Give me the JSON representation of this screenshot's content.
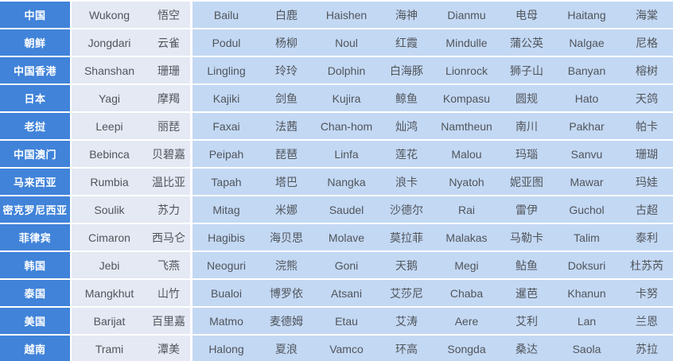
{
  "chart_data": {
    "type": "table",
    "description_visible_content_only": "List of Pacific typhoon names: region (Chinese) followed by five typhoon name pairs (English name, Chinese name)",
    "rows": [
      [
        "中国",
        "Wukong",
        "悟空",
        "Bailu",
        "白鹿",
        "Haishen",
        "海神",
        "Dianmu",
        "电母",
        "Haitang",
        "海棠"
      ],
      [
        "朝鲜",
        "Jongdari",
        "云雀",
        "Podul",
        "杨柳",
        "Noul",
        "红霞",
        "Mindulle",
        "蒲公英",
        "Nalgae",
        "尼格"
      ],
      [
        "中国香港",
        "Shanshan",
        "珊珊",
        "Lingling",
        "玲玲",
        "Dolphin",
        "白海豚",
        "Lionrock",
        "狮子山",
        "Banyan",
        "榕树"
      ],
      [
        "日本",
        "Yagi",
        "摩羯",
        "Kajiki",
        "剑鱼",
        "Kujira",
        "鲸鱼",
        "Kompasu",
        "圆规",
        "Hato",
        "天鸽"
      ],
      [
        "老挝",
        "Leepi",
        "丽琵",
        "Faxai",
        "法茜",
        "Chan-hom",
        "灿鸿",
        "Namtheun",
        "南川",
        "Pakhar",
        "帕卡"
      ],
      [
        "中国澳门",
        "Bebinca",
        "贝碧嘉",
        "Peipah",
        "琵琶",
        "Linfa",
        "莲花",
        "Malou",
        "玛瑙",
        "Sanvu",
        "珊瑚"
      ],
      [
        "马来西亚",
        "Rumbia",
        "温比亚",
        "Tapah",
        "塔巴",
        "Nangka",
        "浪卡",
        "Nyatoh",
        "妮亚图",
        "Mawar",
        "玛娃"
      ],
      [
        "密克罗尼西亚",
        "Soulik",
        "苏力",
        "Mitag",
        "米娜",
        "Saudel",
        "沙德尔",
        "Rai",
        "雷伊",
        "Guchol",
        "古超"
      ],
      [
        "菲律宾",
        "Cimaron",
        "西马仑",
        "Hagibis",
        "海贝思",
        "Molave",
        "莫拉菲",
        "Malakas",
        "马勒卡",
        "Talim",
        "泰利"
      ],
      [
        "韩国",
        "Jebi",
        "飞燕",
        "Neoguri",
        "浣熊",
        "Goni",
        "天鹅",
        "Megi",
        "鲇鱼",
        "Doksuri",
        "杜苏芮"
      ],
      [
        "泰国",
        "Mangkhut",
        "山竹",
        "Bualoi",
        "博罗依",
        "Atsani",
        "艾莎尼",
        "Chaba",
        "暹芭",
        "Khanun",
        "卡努"
      ],
      [
        "美国",
        "Barijat",
        "百里嘉",
        "Matmo",
        "麦德姆",
        "Etau",
        "艾涛",
        "Aere",
        "艾利",
        "Lan",
        "兰恩"
      ],
      [
        "越南",
        "Trami",
        "潭美",
        "Halong",
        "夏浪",
        "Vamco",
        "环高",
        "Songda",
        "桑达",
        "Saola",
        "苏拉"
      ]
    ]
  },
  "colors": {
    "region_bg": "#4083d9",
    "region_text": "#ffffff",
    "group1_bg": "#e4e9f3",
    "data_bg": "#c3d8f3",
    "separator": "#ffffff",
    "text": "#50555c"
  }
}
